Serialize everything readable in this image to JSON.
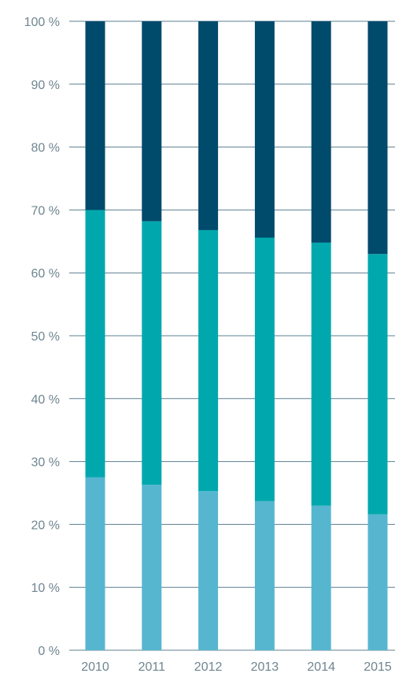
{
  "chart_data": {
    "type": "bar",
    "stacked": true,
    "percent_stacked": true,
    "categories": [
      "2010",
      "2011",
      "2012",
      "2013",
      "2014",
      "2015"
    ],
    "series": [
      {
        "values": [
          27.5,
          26.3,
          25.3,
          23.7,
          23.0,
          21.6
        ],
        "color": "#56b6d0"
      },
      {
        "values": [
          42.5,
          41.9,
          41.5,
          41.9,
          41.8,
          41.4
        ],
        "color": "#00a8ad"
      },
      {
        "values": [
          30.0,
          31.8,
          33.2,
          34.4,
          35.2,
          37.0
        ],
        "color": "#004a6b"
      }
    ],
    "ylim": [
      0,
      100
    ],
    "yticks": [
      0,
      10,
      20,
      30,
      40,
      50,
      60,
      70,
      80,
      90,
      100
    ],
    "ytick_suffix": " %",
    "grid": true,
    "grid_color": "#5c7f8f",
    "legend": "none"
  }
}
